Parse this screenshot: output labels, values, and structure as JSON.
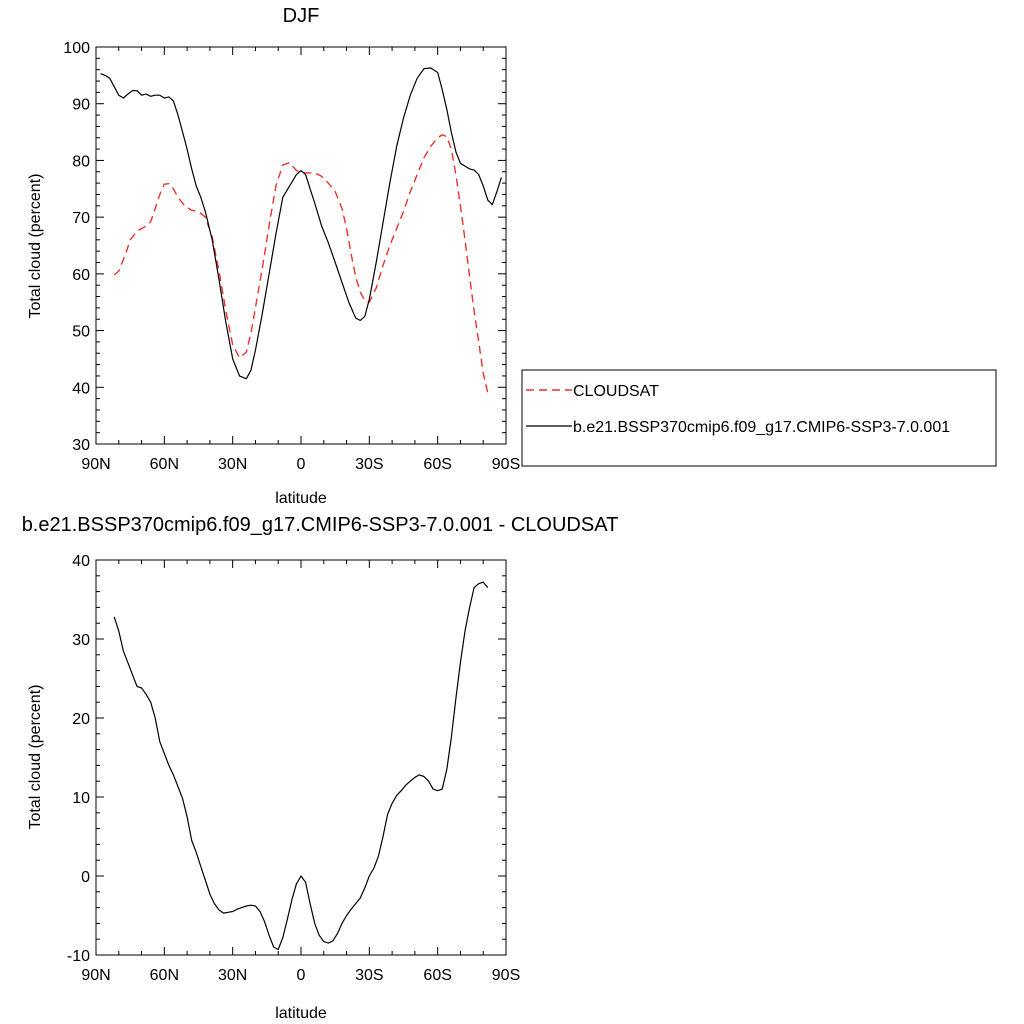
{
  "chart_data": [
    {
      "type": "line",
      "title": "DJF",
      "xlabel": "latitude",
      "ylabel": "Total cloud (percent)",
      "xlim": [
        90,
        -90
      ],
      "ylim": [
        30,
        100
      ],
      "xticks": [
        90,
        60,
        30,
        0,
        -30,
        -60,
        -90
      ],
      "xtick_labels": [
        "90N",
        "60N",
        "30N",
        "0",
        "30S",
        "60S",
        "90S"
      ],
      "yticks": [
        30,
        40,
        50,
        60,
        70,
        80,
        90,
        100
      ],
      "ytick_labels": [
        "30",
        "40",
        "50",
        "60",
        "70",
        "80",
        "90",
        "100"
      ],
      "legend_position": "right",
      "series": [
        {
          "name": "CLOUDSAT",
          "color": "#e8332f",
          "dash": "dashed",
          "x": [
            82,
            80,
            77,
            75,
            72,
            70,
            68,
            66,
            64,
            62,
            60,
            58,
            56,
            54,
            51,
            48,
            45,
            42,
            39,
            36,
            33,
            30,
            27,
            24,
            22,
            20,
            17,
            14,
            11,
            8,
            5,
            2,
            0,
            -2,
            -4,
            -6,
            -9,
            -12,
            -15,
            -18,
            -20,
            -22,
            -24,
            -26,
            -28,
            -30,
            -33,
            -36,
            -39,
            -42,
            -45,
            -48,
            -51,
            -54,
            -57,
            -60,
            -62,
            -64,
            -66,
            -68,
            -70,
            -72,
            -74,
            -76,
            -78,
            -80,
            -82
          ],
          "y": [
            59.8,
            60.5,
            63.5,
            66,
            67.5,
            68,
            68.4,
            69.2,
            71.5,
            74,
            75.8,
            75.9,
            75,
            73.5,
            72,
            71.2,
            71,
            70,
            66.5,
            60.5,
            53.5,
            47.5,
            45.2,
            46.2,
            49.5,
            54,
            61,
            68.5,
            75.5,
            79.2,
            79.6,
            78.2,
            78,
            77.8,
            77.8,
            77.8,
            77.2,
            76,
            74.5,
            71.5,
            68,
            63.5,
            59.5,
            56.8,
            55.3,
            55,
            57.5,
            61.5,
            65,
            68,
            71,
            74.5,
            77.5,
            80.5,
            82.5,
            84,
            84.5,
            84.2,
            82,
            77.5,
            72,
            66,
            59.5,
            53.5,
            48,
            42.5,
            39
          ]
        },
        {
          "name": "b.e21.BSSP370cmip6.f09_g17.CMIP6-SSP3-7.0.001",
          "color": "#000000",
          "dash": "solid",
          "x": [
            88,
            86,
            84,
            82,
            80,
            78,
            76,
            74,
            72,
            70,
            68,
            66,
            64,
            62,
            60,
            58,
            56,
            54,
            52,
            50,
            48,
            46,
            44,
            42,
            39,
            36,
            33,
            30,
            27,
            24,
            22,
            20,
            17,
            14,
            11,
            8,
            5,
            2,
            0,
            -2,
            -4,
            -6,
            -9,
            -12,
            -15,
            -18,
            -21,
            -24,
            -26,
            -28,
            -30,
            -33,
            -36,
            -39,
            -42,
            -45,
            -48,
            -51,
            -54,
            -57,
            -60,
            -62,
            -64,
            -66,
            -68,
            -70,
            -72,
            -74,
            -76,
            -78,
            -80,
            -82,
            -84,
            -86,
            -88
          ],
          "y": [
            95.3,
            95,
            94.5,
            93,
            91.5,
            91,
            91.7,
            92.3,
            92.3,
            91.5,
            91.7,
            91.3,
            91.5,
            91.5,
            91,
            91.2,
            90.5,
            88,
            85,
            82,
            78.5,
            75.5,
            73.5,
            71,
            66,
            59,
            51.5,
            45,
            42,
            41.5,
            43,
            46.5,
            53,
            60,
            67,
            73.5,
            75.5,
            77.5,
            78.2,
            77.5,
            75,
            72.5,
            68.5,
            65.5,
            62,
            58.5,
            55,
            52.2,
            51.8,
            52.5,
            55.5,
            62,
            69,
            76,
            82.5,
            87.5,
            91.5,
            94.5,
            96.2,
            96.3,
            95.5,
            92.5,
            89,
            85,
            81.5,
            79.5,
            79,
            78.5,
            78.3,
            77.5,
            75.5,
            73,
            72.2,
            74.5,
            77
          ]
        }
      ]
    },
    {
      "type": "line",
      "title": "b.e21.BSSP370cmip6.f09_g17.CMIP6-SSP3-7.0.001 - CLOUDSAT",
      "xlabel": "latitude",
      "ylabel": "Total cloud (percent)",
      "xlim": [
        90,
        -90
      ],
      "ylim": [
        -10,
        40
      ],
      "xticks": [
        90,
        60,
        30,
        0,
        -30,
        -60,
        -90
      ],
      "xtick_labels": [
        "90N",
        "60N",
        "30N",
        "0",
        "30S",
        "60S",
        "90S"
      ],
      "yticks": [
        -10,
        0,
        10,
        20,
        30,
        40
      ],
      "ytick_labels": [
        "-10",
        "0",
        "10",
        "20",
        "30",
        "40"
      ],
      "series": [
        {
          "color": "#000000",
          "dash": "solid",
          "x": [
            82,
            80,
            78,
            76,
            74,
            72,
            70,
            68,
            66,
            64,
            62,
            60,
            58,
            56,
            54,
            52,
            50,
            48,
            46,
            44,
            42,
            40,
            38,
            36,
            34,
            32,
            30,
            28,
            26,
            24,
            22,
            20,
            18,
            16,
            14,
            12,
            10,
            8,
            6,
            4,
            2,
            0,
            -2,
            -4,
            -6,
            -8,
            -10,
            -12,
            -14,
            -16,
            -18,
            -20,
            -22,
            -24,
            -26,
            -28,
            -30,
            -32,
            -34,
            -36,
            -38,
            -40,
            -42,
            -44,
            -46,
            -48,
            -50,
            -52,
            -54,
            -56,
            -58,
            -60,
            -62,
            -64,
            -66,
            -68,
            -70,
            -72,
            -74,
            -76,
            -78,
            -80,
            -82
          ],
          "y": [
            32.8,
            31,
            28.5,
            27,
            25.5,
            24,
            23.8,
            23,
            22,
            20,
            17,
            15.5,
            14,
            12.8,
            11.3,
            9.8,
            7.5,
            4.5,
            3,
            1.2,
            -0.5,
            -2.3,
            -3.5,
            -4.3,
            -4.7,
            -4.6,
            -4.5,
            -4.2,
            -4,
            -3.8,
            -3.7,
            -3.8,
            -4.5,
            -5.8,
            -7.5,
            -9,
            -9.3,
            -7.8,
            -5.5,
            -3,
            -1,
            0,
            -0.8,
            -3.5,
            -6,
            -7.5,
            -8.3,
            -8.5,
            -8.2,
            -7.3,
            -6,
            -5,
            -4.2,
            -3.5,
            -2.8,
            -1.5,
            0,
            1,
            2.5,
            5,
            7.8,
            9.2,
            10.2,
            10.8,
            11.5,
            12,
            12.5,
            12.8,
            12.6,
            12,
            11,
            10.8,
            11,
            13.5,
            17.5,
            22.5,
            27,
            31,
            34,
            36.5,
            37,
            37.2,
            36.5
          ]
        }
      ]
    }
  ]
}
